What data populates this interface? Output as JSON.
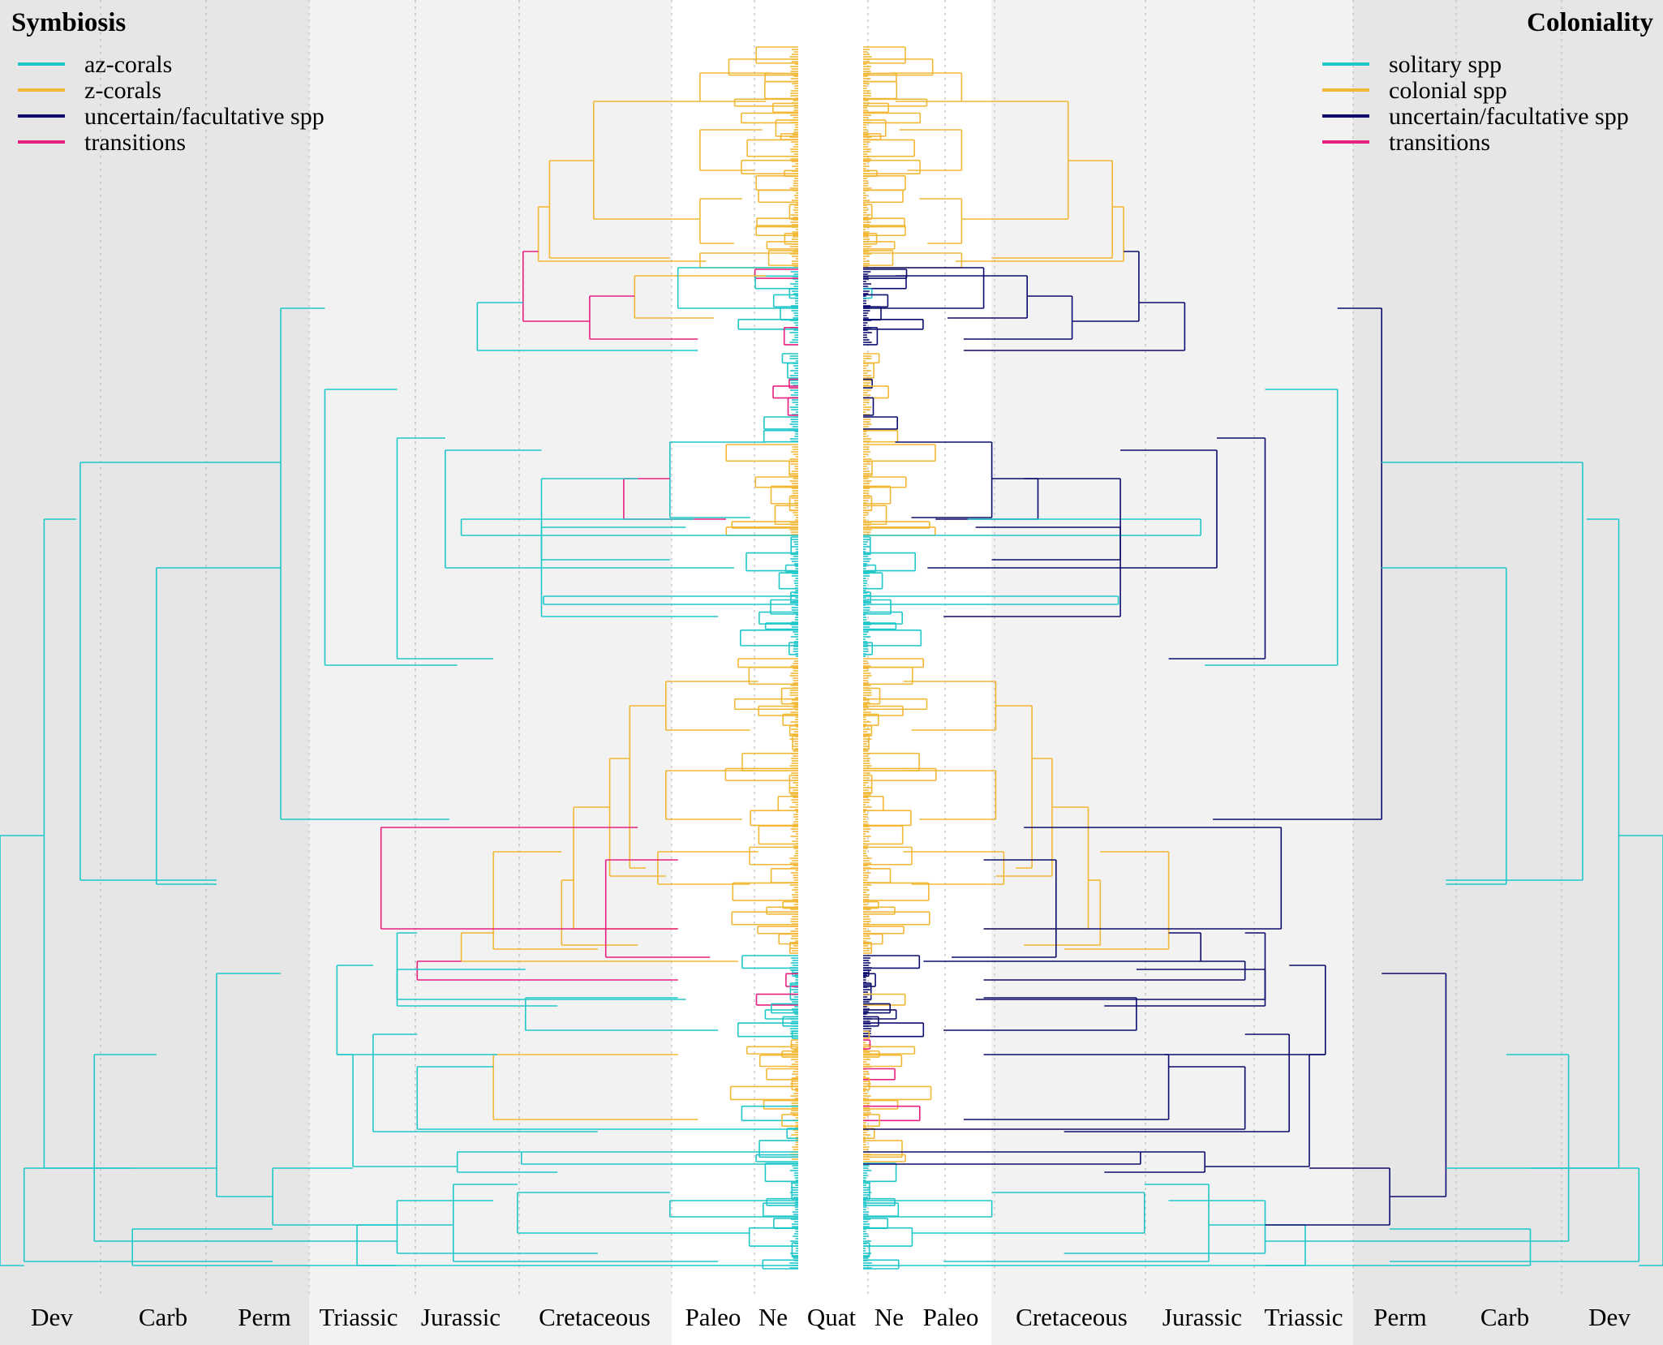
{
  "figure": {
    "left_panel": {
      "title": "Symbiosis",
      "legend": [
        {
          "label": "az-corals",
          "color": "#1fc7c9"
        },
        {
          "label": "z-corals",
          "color": "#f2b835"
        },
        {
          "label": "uncertain/facultative spp",
          "color": "#0d0d6e"
        },
        {
          "label": "transitions",
          "color": "#e8207f"
        }
      ]
    },
    "right_panel": {
      "title": "Coloniality",
      "legend": [
        {
          "label": "solitary spp",
          "color": "#1fc7c9"
        },
        {
          "label": "colonial spp",
          "color": "#f2b835"
        },
        {
          "label": "uncertain/facultative spp",
          "color": "#0d0d6e"
        },
        {
          "label": "transitions",
          "color": "#e8207f"
        }
      ]
    },
    "time_axis": {
      "left": [
        "Dev",
        "Carb",
        "Perm",
        "Triassic",
        "Jurassic",
        "Cretaceous",
        "Paleo",
        "Ne"
      ],
      "center": "Quat",
      "right": [
        "Ne",
        "Paleo",
        "Cretaceous",
        "Jurassic",
        "Triassic",
        "Perm",
        "Carb",
        "Dev"
      ]
    }
  }
}
